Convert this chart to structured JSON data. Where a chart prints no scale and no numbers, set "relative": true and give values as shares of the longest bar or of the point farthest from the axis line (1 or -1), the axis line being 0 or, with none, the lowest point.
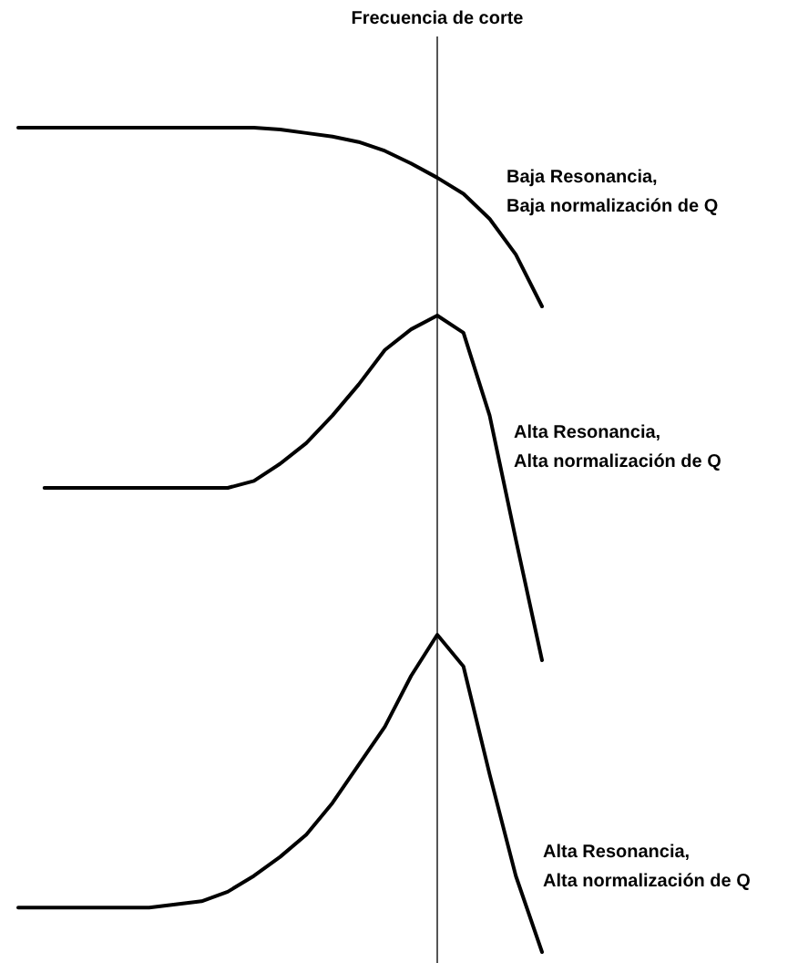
{
  "chart_data": [
    {
      "type": "line",
      "relative": true,
      "marker": "none",
      "line_style": "solid",
      "categories": [
        null,
        null,
        null,
        null,
        null,
        null,
        null,
        null,
        null,
        null,
        null,
        null,
        null,
        null,
        null,
        null,
        null,
        null,
        null,
        null,
        null
      ],
      "series": [
        {
          "color": "#000000",
          "values": [
            1,
            1,
            1,
            1,
            1,
            1,
            1,
            1,
            1,
            1,
            0.99,
            0.97,
            0.95,
            0.92,
            0.87,
            0.8,
            0.72,
            0.63,
            0.49,
            0.29,
            0
          ]
        }
      ],
      "annotations": [
        "Frecuencia de corte",
        "Baja Resonancia,\nBaja normalización de Q"
      ]
    },
    {
      "type": "line",
      "relative": true,
      "marker": "none",
      "line_style": "solid",
      "categories": [
        null,
        null,
        null,
        null,
        null,
        null,
        null,
        null,
        null,
        null,
        null,
        null,
        null,
        null,
        null,
        null,
        null,
        null,
        null,
        null,
        null
      ],
      "series": [
        {
          "color": "#000000",
          "values": [
            null,
            0.5,
            0.5,
            0.5,
            0.5,
            0.5,
            0.5,
            0.5,
            0.5,
            0.52,
            0.57,
            0.63,
            0.71,
            0.8,
            0.9,
            0.96,
            1,
            0.95,
            0.71,
            0.35,
            0
          ]
        }
      ],
      "annotations": [
        "Alta Resonancia,\nAlta normalización de Q"
      ]
    },
    {
      "type": "line",
      "relative": true,
      "marker": "none",
      "line_style": "solid",
      "categories": [
        null,
        null,
        null,
        null,
        null,
        null,
        null,
        null,
        null,
        null,
        null,
        null,
        null,
        null,
        null,
        null,
        null,
        null,
        null,
        null,
        null
      ],
      "series": [
        {
          "color": "#000000",
          "values": [
            0.14,
            0.14,
            0.14,
            0.14,
            0.14,
            0.14,
            0.15,
            0.16,
            0.19,
            0.24,
            0.3,
            0.37,
            0.47,
            0.59,
            0.71,
            0.87,
            1,
            0.9,
            0.56,
            0.24,
            0
          ]
        }
      ],
      "annotations": [
        "Alta Resonancia,\nAlta normalización de Q"
      ]
    }
  ]
}
